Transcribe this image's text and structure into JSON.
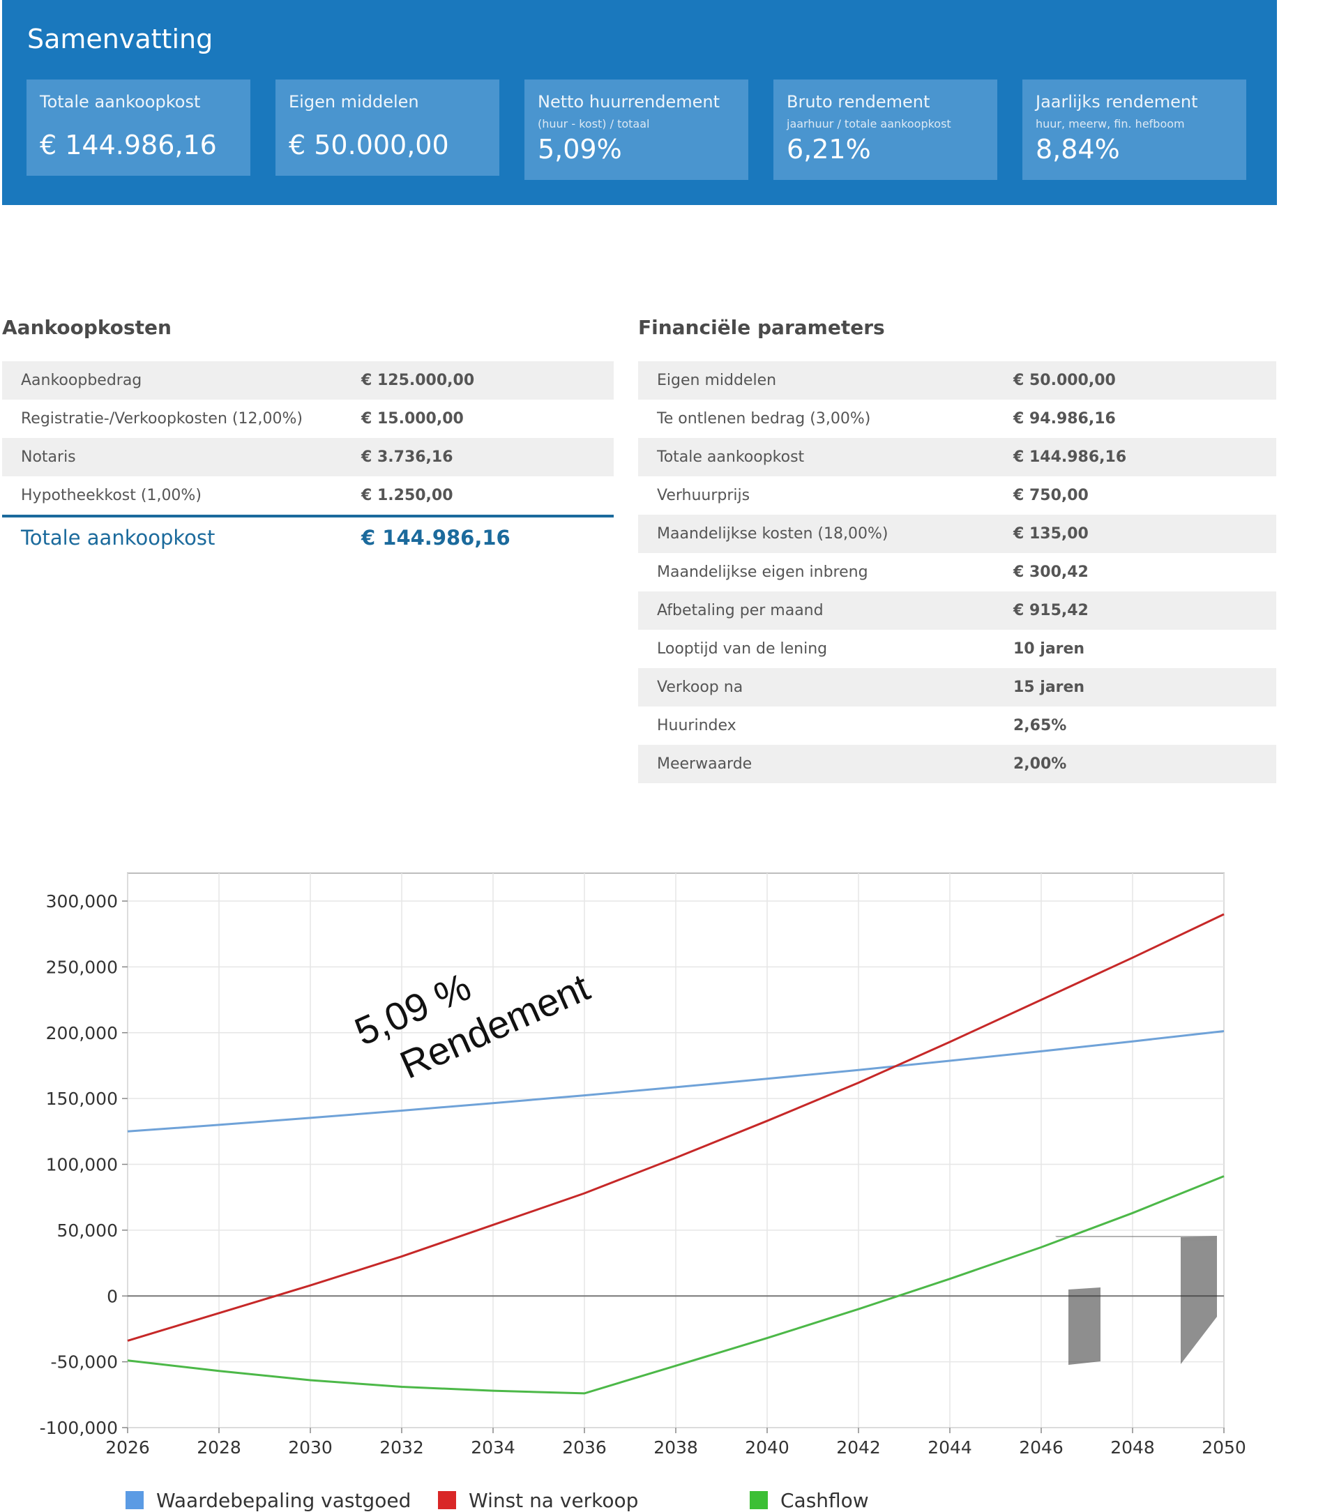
{
  "summary": {
    "title": "Samenvatting",
    "cards": [
      {
        "label": "Totale aankoopkost",
        "sub": "",
        "value": "€ 144.986,16"
      },
      {
        "label": "Eigen middelen",
        "sub": "",
        "value": "€ 50.000,00"
      },
      {
        "label": "Netto huurrendement",
        "sub": "(huur - kost) / totaal",
        "value": "5,09%"
      },
      {
        "label": "Bruto rendement",
        "sub": "jaarhuur / totale aankoopkost",
        "value": "6,21%"
      },
      {
        "label": "Jaarlijks rendement",
        "sub": "huur, meerw, fin. hefboom",
        "value": "8,84%"
      }
    ]
  },
  "aankoopkosten": {
    "title": "Aankoopkosten",
    "rows": [
      {
        "label": "Aankoopbedrag",
        "value": "€ 125.000,00"
      },
      {
        "label": "Registratie-/Verkoopkosten (12,00%)",
        "value": "€ 15.000,00"
      },
      {
        "label": "Notaris",
        "value": "€ 3.736,16"
      },
      {
        "label": "Hypotheekkost (1,00%)",
        "value": "€ 1.250,00"
      }
    ],
    "total": {
      "label": "Totale aankoopkost",
      "value": "€ 144.986,16"
    }
  },
  "parameters": {
    "title": "Financiële parameters",
    "rows": [
      {
        "label": "Eigen middelen",
        "value": "€ 50.000,00"
      },
      {
        "label": "Te ontlenen bedrag (3,00%)",
        "value": "€ 94.986,16"
      },
      {
        "label": "Totale aankoopkost",
        "value": "€ 144.986,16"
      },
      {
        "label": "Verhuurprijs",
        "value": "€ 750,00"
      },
      {
        "label": "Maandelijkse kosten (18,00%)",
        "value": "€ 135,00"
      },
      {
        "label": "Maandelijkse eigen inbreng",
        "value": "€ 300,42"
      },
      {
        "label": "Afbetaling per maand",
        "value": "€ 915,42"
      },
      {
        "label": "Looptijd van de lening",
        "value": "10 jaren"
      },
      {
        "label": "Verkoop na",
        "value": "15 jaren"
      },
      {
        "label": "Huurindex",
        "value": "2,65%"
      },
      {
        "label": "Meerwaarde",
        "value": "2,00%"
      }
    ]
  },
  "chart_data": {
    "type": "line",
    "x": [
      2026,
      2028,
      2030,
      2032,
      2034,
      2036,
      2038,
      2040,
      2042,
      2044,
      2046,
      2048,
      2050
    ],
    "xticks": [
      "2026",
      "2028",
      "2030",
      "2032",
      "2034",
      "2036",
      "2038",
      "2040",
      "2042",
      "2044",
      "2046",
      "2048",
      "2050"
    ],
    "yticks": [
      "300,000",
      "250,000",
      "200,000",
      "150,000",
      "100,000",
      "50,000",
      "0",
      "-50,000",
      "-100,000"
    ],
    "ytick_values": [
      300000,
      250000,
      200000,
      150000,
      100000,
      50000,
      0,
      -50000,
      -100000
    ],
    "xlim": [
      2026,
      2050
    ],
    "ylim": [
      -100000,
      320000
    ],
    "grid": true,
    "legend_position": "bottom",
    "annotation_lines": [
      "5,09 %",
      "Rendement"
    ],
    "series": [
      {
        "name": "Waardebepaling vastgoed",
        "color": "#6fa2d8",
        "values": [
          125000,
          130000,
          135300,
          140800,
          146500,
          152400,
          158600,
          165000,
          171700,
          178700,
          185900,
          193400,
          201200
        ]
      },
      {
        "name": "Winst na verkoop",
        "color": "#c62828",
        "values": [
          -34000,
          -13000,
          8000,
          30000,
          54000,
          78000,
          105000,
          133000,
          162000,
          193000,
          225000,
          257000,
          290000
        ]
      },
      {
        "name": "Cashflow",
        "color": "#4cb848",
        "values": [
          -49000,
          -57000,
          -64000,
          -69000,
          -72000,
          -74000,
          -53000,
          -32000,
          -10000,
          13000,
          37000,
          63000,
          91000
        ]
      }
    ]
  }
}
